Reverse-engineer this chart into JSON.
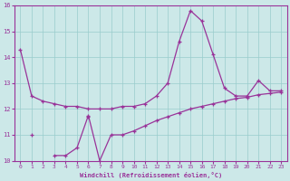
{
  "xlabel": "Windchill (Refroidissement éolien,°C)",
  "bg_color": "#cce8e8",
  "grid_color": "#99cccc",
  "line_color": "#993399",
  "marker": "+",
  "ylim": [
    10,
    16
  ],
  "xlim": [
    -0.5,
    23.5
  ],
  "yticks": [
    10,
    11,
    12,
    13,
    14,
    15,
    16
  ],
  "xticks": [
    0,
    1,
    2,
    3,
    4,
    5,
    6,
    7,
    8,
    9,
    10,
    11,
    12,
    13,
    14,
    15,
    16,
    17,
    18,
    19,
    20,
    21,
    22,
    23
  ],
  "line_A": [
    14.3,
    12.5,
    12.3,
    12.2,
    12.1,
    12.1,
    12.0,
    12.0,
    12.0,
    12.1,
    12.1,
    12.2,
    12.5,
    13.0,
    14.6,
    15.8,
    15.4,
    14.1,
    12.8,
    12.5,
    12.5,
    13.1,
    12.7,
    12.7
  ],
  "line_B": [
    null,
    11.0,
    null,
    null,
    null,
    null,
    11.7,
    null,
    null,
    null,
    null,
    null,
    null,
    null,
    null,
    null,
    null,
    null,
    null,
    null,
    null,
    null,
    null,
    null
  ],
  "line_C": [
    null,
    null,
    null,
    10.2,
    10.2,
    10.5,
    11.75,
    10.0,
    11.0,
    11.0,
    11.15,
    11.35,
    11.55,
    11.7,
    11.85,
    12.0,
    12.1,
    12.2,
    12.3,
    12.4,
    12.45,
    12.55,
    12.6,
    12.65
  ]
}
